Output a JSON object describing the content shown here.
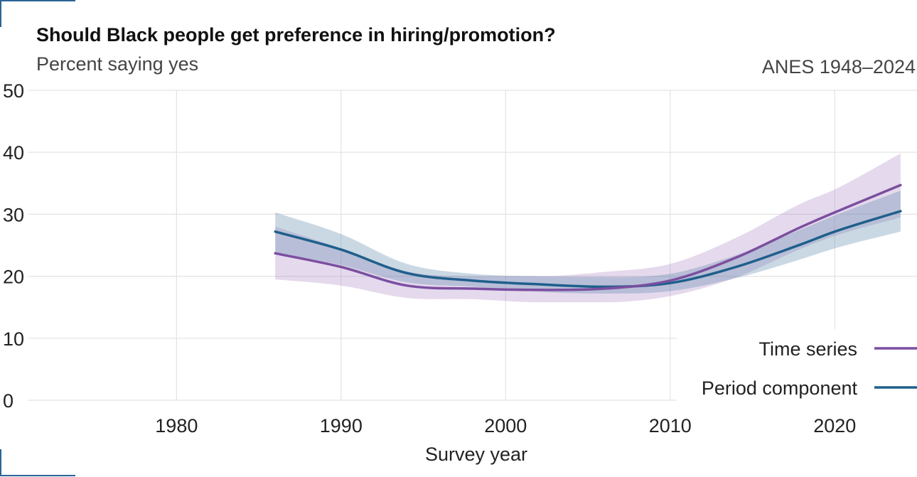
{
  "header": {
    "title": "Should Black people get preference in hiring/promotion?",
    "subtitle": "Percent saying yes",
    "source": "ANES 1948–2024"
  },
  "chart_data": {
    "type": "line",
    "title": "Should Black people get preference in hiring/promotion?",
    "subtitle": "Percent saying yes",
    "xlabel": "Survey year",
    "ylabel": "",
    "xlim": [
      1971,
      2025
    ],
    "ylim": [
      0,
      50
    ],
    "x_ticks": [
      1980,
      1990,
      2000,
      2010,
      2020
    ],
    "y_ticks": [
      0,
      10,
      20,
      30,
      40,
      50
    ],
    "grid": true,
    "legend_position": "bottom-right",
    "x": [
      1986,
      1990,
      1994,
      1998,
      2002,
      2006,
      2010,
      2014,
      2018,
      2020,
      2024
    ],
    "series": [
      {
        "name": "Time series",
        "color": "#7b4fa0",
        "values": [
          23.7,
          21.5,
          18.5,
          18.0,
          17.8,
          18.0,
          19.3,
          23.0,
          28.0,
          30.3,
          34.7
        ],
        "lower": [
          19.5,
          18.5,
          16.5,
          16.3,
          15.8,
          15.8,
          16.8,
          19.8,
          24.5,
          26.5,
          29.5
        ],
        "upper": [
          28.0,
          24.5,
          20.8,
          20.0,
          20.0,
          20.7,
          22.0,
          26.2,
          31.8,
          34.0,
          39.8
        ]
      },
      {
        "name": "Period component",
        "color": "#1f5f8b",
        "values": [
          27.2,
          24.3,
          20.5,
          19.3,
          18.7,
          18.3,
          18.9,
          21.5,
          25.2,
          27.2,
          30.5
        ],
        "lower": [
          23.8,
          21.8,
          19.0,
          18.3,
          17.5,
          17.2,
          17.6,
          19.7,
          22.8,
          24.5,
          27.2
        ],
        "upper": [
          30.3,
          26.8,
          22.0,
          20.4,
          20.0,
          19.9,
          20.4,
          23.4,
          27.6,
          29.8,
          33.8
        ]
      }
    ]
  }
}
